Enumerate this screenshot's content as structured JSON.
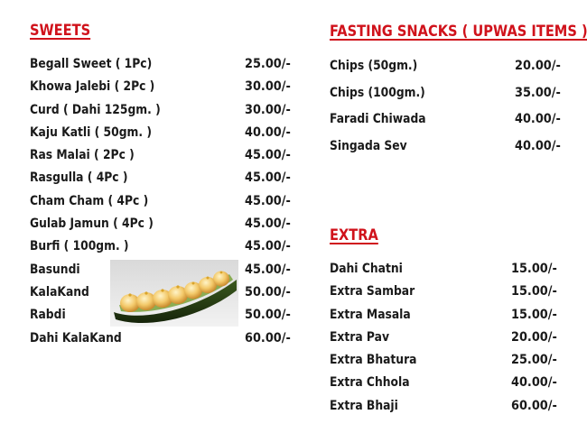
{
  "sweets": {
    "heading": "SWEETS",
    "items": [
      {
        "name": "Begall Sweet ( 1Pc)",
        "price": "25.00/-"
      },
      {
        "name": "Khowa Jalebi ( 2Pc )",
        "price": "30.00/-"
      },
      {
        "name": "Curd ( Dahi 125gm. )",
        "price": "30.00/-"
      },
      {
        "name": "Kaju Katli ( 50gm. )",
        "price": "40.00/-"
      },
      {
        "name": "Ras Malai ( 2Pc )",
        "price": "45.00/-"
      },
      {
        "name": "Rasgulla ( 4Pc )",
        "price": "45.00/-"
      },
      {
        "name": "Cham Cham ( 4Pc )",
        "price": "45.00/-"
      },
      {
        "name": "Gulab Jamun ( 4Pc )",
        "price": "45.00/-"
      },
      {
        "name": "Burfi ( 100gm. )",
        "price": "45.00/-"
      },
      {
        "name": "Basundi",
        "price": "45.00/-"
      },
      {
        "name": "KalaKand",
        "price": "50.00/-"
      },
      {
        "name": "Rabdi",
        "price": "50.00/-"
      },
      {
        "name": "Dahi KalaKand",
        "price": "60.00/-"
      }
    ]
  },
  "fasting": {
    "heading": "FASTING SNACKS ( UPWAS ITEMS )",
    "items": [
      {
        "name": "Chips (50gm.)",
        "price": "20.00/-"
      },
      {
        "name": "Chips (100gm.)",
        "price": "35.00/-"
      },
      {
        "name": "Faradi Chiwada",
        "price": "40.00/-"
      },
      {
        "name": "Singada Sev",
        "price": "40.00/-"
      }
    ]
  },
  "extra": {
    "heading": "EXTRA",
    "items": [
      {
        "name": "Dahi Chatni",
        "price": "15.00/-"
      },
      {
        "name": "Extra Sambar",
        "price": "15.00/-"
      },
      {
        "name": "Extra Masala",
        "price": "15.00/-"
      },
      {
        "name": "Extra Pav",
        "price": "20.00/-"
      },
      {
        "name": "Extra Bhatura",
        "price": "25.00/-"
      },
      {
        "name": "Extra Chhola",
        "price": "40.00/-"
      },
      {
        "name": "Extra Bhaji",
        "price": "60.00/-"
      }
    ]
  },
  "colors": {
    "heading": "#d0121b",
    "text": "#1a1a1a",
    "background": "#ffffff"
  }
}
